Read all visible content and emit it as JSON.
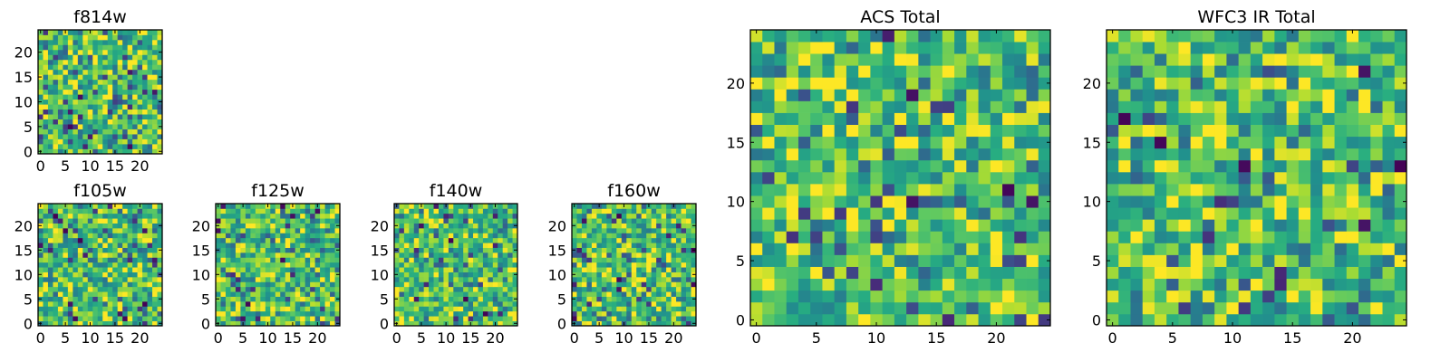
{
  "chart_data": [
    {
      "type": "heatmap",
      "title": "f814w",
      "size": 25,
      "colormap": "viridis",
      "xticks": [
        0,
        5,
        10,
        15,
        20
      ],
      "yticks": [
        0,
        5,
        10,
        15,
        20
      ],
      "xlim": [
        0,
        25
      ],
      "ylim": [
        0,
        25
      ],
      "seed": 11
    },
    {
      "type": "heatmap",
      "title": "f105w",
      "size": 25,
      "colormap": "viridis",
      "xticks": [
        0,
        5,
        10,
        15,
        20
      ],
      "yticks": [
        0,
        5,
        10,
        15,
        20
      ],
      "xlim": [
        0,
        25
      ],
      "ylim": [
        0,
        25
      ],
      "seed": 23
    },
    {
      "type": "heatmap",
      "title": "f125w",
      "size": 25,
      "colormap": "viridis",
      "xticks": [
        0,
        5,
        10,
        15,
        20
      ],
      "yticks": [
        0,
        5,
        10,
        15,
        20
      ],
      "xlim": [
        0,
        25
      ],
      "ylim": [
        0,
        25
      ],
      "seed": 37
    },
    {
      "type": "heatmap",
      "title": "f140w",
      "size": 25,
      "colormap": "viridis",
      "xticks": [
        0,
        5,
        10,
        15,
        20
      ],
      "yticks": [
        0,
        5,
        10,
        15,
        20
      ],
      "xlim": [
        0,
        25
      ],
      "ylim": [
        0,
        25
      ],
      "seed": 41
    },
    {
      "type": "heatmap",
      "title": "f160w",
      "size": 25,
      "colormap": "viridis",
      "xticks": [
        0,
        5,
        10,
        15,
        20
      ],
      "yticks": [
        0,
        5,
        10,
        15,
        20
      ],
      "xlim": [
        0,
        25
      ],
      "ylim": [
        0,
        25
      ],
      "seed": 53
    },
    {
      "type": "heatmap",
      "title": "ACS Total",
      "size": 25,
      "colormap": "viridis",
      "xticks": [
        0,
        5,
        10,
        15,
        20
      ],
      "yticks": [
        0,
        5,
        10,
        15,
        20
      ],
      "xlim": [
        0,
        25
      ],
      "ylim": [
        0,
        25
      ],
      "seed": 67
    },
    {
      "type": "heatmap",
      "title": "WFC3 IR Total",
      "size": 25,
      "colormap": "viridis",
      "xticks": [
        0,
        5,
        10,
        15,
        20
      ],
      "yticks": [
        0,
        5,
        10,
        15,
        20
      ],
      "xlim": [
        0,
        25
      ],
      "ylim": [
        0,
        25
      ],
      "seed": 79
    }
  ]
}
